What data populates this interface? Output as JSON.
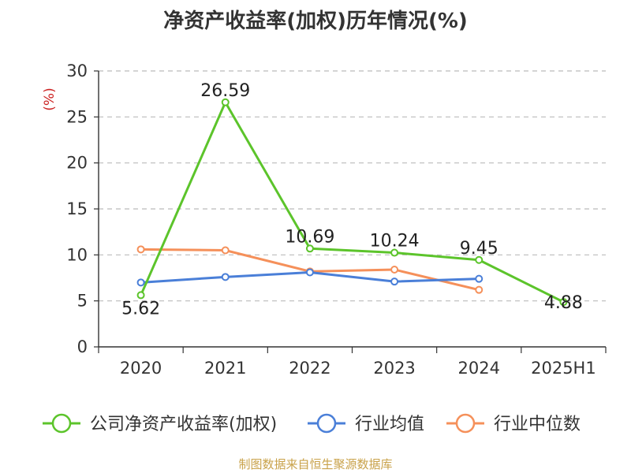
{
  "chart_data": {
    "type": "line",
    "title": "净资产收益率(加权)历年情况(%)",
    "ylabel": "(%)",
    "xlabel": "",
    "categories": [
      "2020",
      "2021",
      "2022",
      "2023",
      "2024",
      "2025H1"
    ],
    "ylim": [
      0,
      30
    ],
    "yticks": [
      0,
      5,
      10,
      15,
      20,
      25,
      30
    ],
    "grid": true,
    "legend_position": "bottom",
    "series": [
      {
        "name": "公司净资产收益率(加权)",
        "color": "#5cc42b",
        "values": [
          5.62,
          26.59,
          10.69,
          10.24,
          9.45,
          4.88
        ],
        "labels": [
          "5.62",
          "26.59",
          "10.69",
          "10.24",
          "9.45",
          "4.88"
        ]
      },
      {
        "name": "行业均值",
        "color": "#4a7fd8",
        "values": [
          7.0,
          7.6,
          8.1,
          7.1,
          7.4,
          null
        ]
      },
      {
        "name": "行业中位数",
        "color": "#f5905a",
        "values": [
          10.6,
          10.5,
          8.2,
          8.4,
          6.2,
          null
        ]
      }
    ]
  },
  "source": "制图数据来自恒生聚源数据库"
}
